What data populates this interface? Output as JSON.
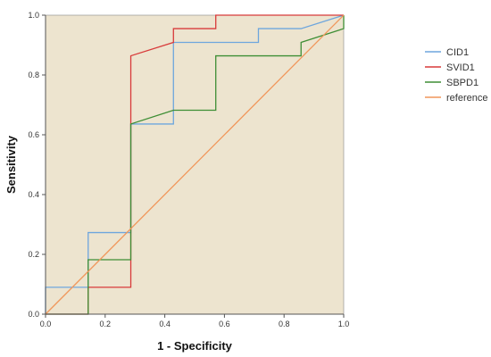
{
  "chart_data": {
    "type": "line",
    "title": "",
    "xlabel": "1 - Specificity",
    "ylabel": "Sensitivity",
    "xlim": [
      0,
      1
    ],
    "ylim": [
      0,
      1
    ],
    "xticks": [
      "0.0",
      "0.2",
      "0.4",
      "0.6",
      "0.8",
      "1.0"
    ],
    "yticks": [
      "0.0",
      "0.2",
      "0.4",
      "0.6",
      "0.8",
      "1.0"
    ],
    "background": "#ede4cf",
    "grid": false,
    "legend_position": "right",
    "series": [
      {
        "name": "CID1",
        "color": "#6ea6dd",
        "points": [
          [
            0,
            0
          ],
          [
            0,
            0.09
          ],
          [
            0.143,
            0.09
          ],
          [
            0.143,
            0.273
          ],
          [
            0.286,
            0.273
          ],
          [
            0.286,
            0.636
          ],
          [
            0.429,
            0.636
          ],
          [
            0.429,
            0.909
          ],
          [
            0.714,
            0.909
          ],
          [
            0.714,
            0.955
          ],
          [
            0.857,
            0.955
          ],
          [
            1,
            1
          ]
        ]
      },
      {
        "name": "SVID1",
        "color": "#d83a3a",
        "points": [
          [
            0,
            0
          ],
          [
            0.143,
            0
          ],
          [
            0.143,
            0.09
          ],
          [
            0.286,
            0.09
          ],
          [
            0.286,
            0.864
          ],
          [
            0.429,
            0.909
          ],
          [
            0.429,
            0.955
          ],
          [
            0.571,
            0.955
          ],
          [
            0.571,
            1
          ],
          [
            1,
            1
          ]
        ]
      },
      {
        "name": "SBPD1",
        "color": "#3e8e35",
        "points": [
          [
            0,
            0
          ],
          [
            0.143,
            0
          ],
          [
            0.143,
            0.182
          ],
          [
            0.286,
            0.182
          ],
          [
            0.286,
            0.636
          ],
          [
            0.429,
            0.682
          ],
          [
            0.571,
            0.682
          ],
          [
            0.571,
            0.864
          ],
          [
            0.857,
            0.864
          ],
          [
            0.857,
            0.909
          ],
          [
            1,
            0.955
          ],
          [
            1,
            1
          ]
        ]
      },
      {
        "name": "reference",
        "color": "#f0965a",
        "points": [
          [
            0,
            0
          ],
          [
            1,
            1
          ]
        ]
      }
    ]
  }
}
